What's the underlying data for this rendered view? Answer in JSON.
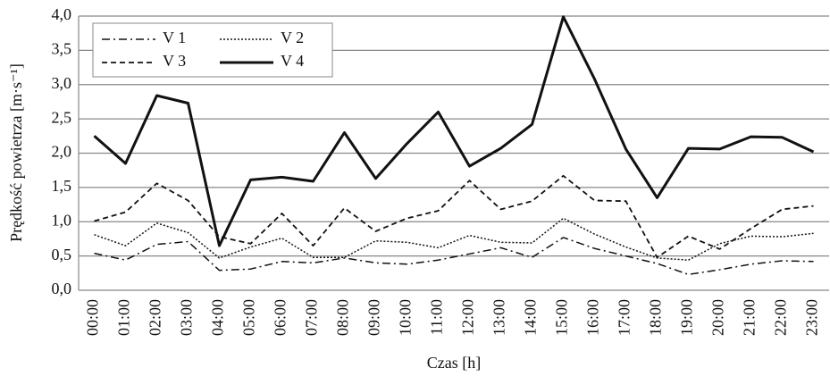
{
  "chart_data": {
    "type": "line",
    "y_label": "Prędkość powietrza [m·s⁻¹]",
    "x_label": "Czas [h]",
    "categories": [
      "00:00",
      "01:00",
      "02:00",
      "03:00",
      "04:00",
      "05:00",
      "06:00",
      "07:00",
      "08:00",
      "09:00",
      "10:00",
      "11:00",
      "12:00",
      "13:00",
      "14:00",
      "15:00",
      "16:00",
      "17:00",
      "18:00",
      "19:00",
      "20:00",
      "21:00",
      "22:00",
      "23:00"
    ],
    "ylim": [
      0,
      4
    ],
    "yticks": [
      {
        "value": 0,
        "label": "0,0"
      },
      {
        "value": 0.5,
        "label": "0,5"
      },
      {
        "value": 1,
        "label": "1,0"
      },
      {
        "value": 1.5,
        "label": "1,5"
      },
      {
        "value": 2,
        "label": "2,0"
      },
      {
        "value": 2.5,
        "label": "2,5"
      },
      {
        "value": 3,
        "label": "3,0"
      },
      {
        "value": 3.5,
        "label": "3,5"
      },
      {
        "value": 4,
        "label": "4,0"
      }
    ],
    "grid": true,
    "legend": "upper left",
    "series": [
      {
        "name": "V 1",
        "color": "#111111",
        "dash": "9,4,2,4",
        "width": 1.5,
        "values": [
          0.54,
          0.44,
          0.67,
          0.71,
          0.29,
          0.31,
          0.42,
          0.4,
          0.47,
          0.4,
          0.38,
          0.44,
          0.53,
          0.62,
          0.48,
          0.77,
          0.61,
          0.5,
          0.39,
          0.23,
          0.3,
          0.38,
          0.43,
          0.42
        ]
      },
      {
        "name": "V 2",
        "color": "#111111",
        "dash": "2,2",
        "width": 1.5,
        "values": [
          0.81,
          0.65,
          0.98,
          0.84,
          0.47,
          0.63,
          0.76,
          0.48,
          0.48,
          0.72,
          0.7,
          0.62,
          0.8,
          0.7,
          0.69,
          1.05,
          0.82,
          0.63,
          0.47,
          0.44,
          0.68,
          0.79,
          0.78,
          0.83
        ]
      },
      {
        "name": "V 3",
        "color": "#111111",
        "dash": "6,4",
        "width": 1.8,
        "values": [
          1.01,
          1.14,
          1.56,
          1.31,
          0.78,
          0.68,
          1.12,
          0.65,
          1.2,
          0.86,
          1.05,
          1.16,
          1.6,
          1.18,
          1.3,
          1.67,
          1.31,
          1.3,
          0.48,
          0.79,
          0.6,
          0.9,
          1.18,
          1.23
        ]
      },
      {
        "name": "V 4",
        "color": "#111111",
        "dash": "none",
        "width": 3,
        "values": [
          2.25,
          1.85,
          2.84,
          2.73,
          0.65,
          1.61,
          1.65,
          1.59,
          2.3,
          1.63,
          2.14,
          2.6,
          1.81,
          2.07,
          2.42,
          3.99,
          3.08,
          2.06,
          1.35,
          2.07,
          2.06,
          2.24,
          2.23,
          2.02
        ]
      }
    ]
  }
}
